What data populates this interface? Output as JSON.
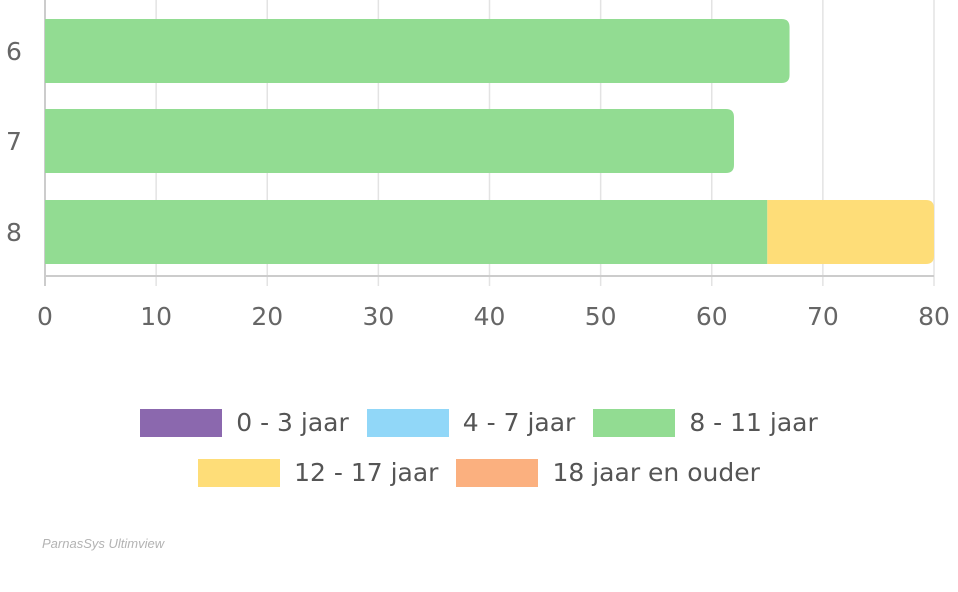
{
  "chart_data": {
    "type": "bar",
    "orientation": "horizontal",
    "stacked": true,
    "categories": [
      "6",
      "7",
      "8"
    ],
    "series": [
      {
        "name": "0 - 3 jaar",
        "color": "#8b68ae",
        "values": [
          0,
          0,
          0
        ]
      },
      {
        "name": "4 - 7 jaar",
        "color": "#91d7f8",
        "values": [
          0,
          0,
          0
        ]
      },
      {
        "name": "8 - 11 jaar",
        "color": "#92dc92",
        "values": [
          67,
          62,
          65
        ]
      },
      {
        "name": "12 - 17 jaar",
        "color": "#fedd78",
        "values": [
          0,
          0,
          15
        ]
      },
      {
        "name": "18 jaar en ouder",
        "color": "#fbb07f",
        "values": [
          0,
          0,
          0
        ]
      }
    ],
    "xlim": [
      0,
      80
    ],
    "xticks": [
      "0",
      "10",
      "20",
      "30",
      "40",
      "50",
      "60",
      "70",
      "80"
    ],
    "grid": true,
    "legend_position": "bottom"
  },
  "credit": "ParnasSys Ultimview"
}
